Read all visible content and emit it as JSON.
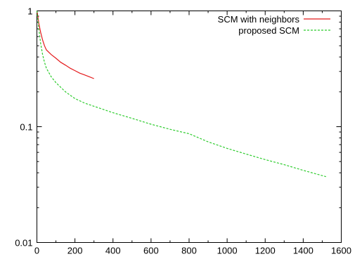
{
  "chart_data": {
    "type": "line",
    "title": "",
    "xlabel": "",
    "ylabel": "",
    "xlim": [
      0,
      1600
    ],
    "ylim": [
      0.01,
      1
    ],
    "yscale": "log",
    "grid": false,
    "legend_position": "top-right",
    "x_ticks": [
      "0",
      "200",
      "400",
      "600",
      "800",
      "1000",
      "1200",
      "1400",
      "1600"
    ],
    "y_ticks": [
      "1",
      "0.1",
      "0.01"
    ],
    "series": [
      {
        "name": "SCM with neighbors",
        "color": "#e41a1c",
        "style": "solid",
        "points": [
          [
            0,
            1.0
          ],
          [
            5,
            0.9
          ],
          [
            10,
            0.78
          ],
          [
            20,
            0.65
          ],
          [
            30,
            0.56
          ],
          [
            40,
            0.5
          ],
          [
            50,
            0.46
          ],
          [
            75,
            0.42
          ],
          [
            100,
            0.39
          ],
          [
            125,
            0.36
          ],
          [
            150,
            0.34
          ],
          [
            175,
            0.32
          ],
          [
            200,
            0.305
          ],
          [
            225,
            0.29
          ],
          [
            250,
            0.28
          ],
          [
            275,
            0.27
          ],
          [
            300,
            0.26
          ]
        ]
      },
      {
        "name": "proposed SCM",
        "color": "#2ecc2e",
        "style": "dashed",
        "points": [
          [
            0,
            1.0
          ],
          [
            5,
            0.85
          ],
          [
            10,
            0.7
          ],
          [
            20,
            0.52
          ],
          [
            30,
            0.42
          ],
          [
            40,
            0.36
          ],
          [
            50,
            0.32
          ],
          [
            75,
            0.27
          ],
          [
            100,
            0.24
          ],
          [
            150,
            0.2
          ],
          [
            200,
            0.175
          ],
          [
            250,
            0.16
          ],
          [
            300,
            0.15
          ],
          [
            400,
            0.132
          ],
          [
            500,
            0.118
          ],
          [
            600,
            0.105
          ],
          [
            700,
            0.095
          ],
          [
            800,
            0.087
          ],
          [
            900,
            0.074
          ],
          [
            1000,
            0.065
          ],
          [
            1100,
            0.058
          ],
          [
            1200,
            0.052
          ],
          [
            1300,
            0.047
          ],
          [
            1400,
            0.042
          ],
          [
            1520,
            0.037
          ]
        ]
      }
    ]
  }
}
